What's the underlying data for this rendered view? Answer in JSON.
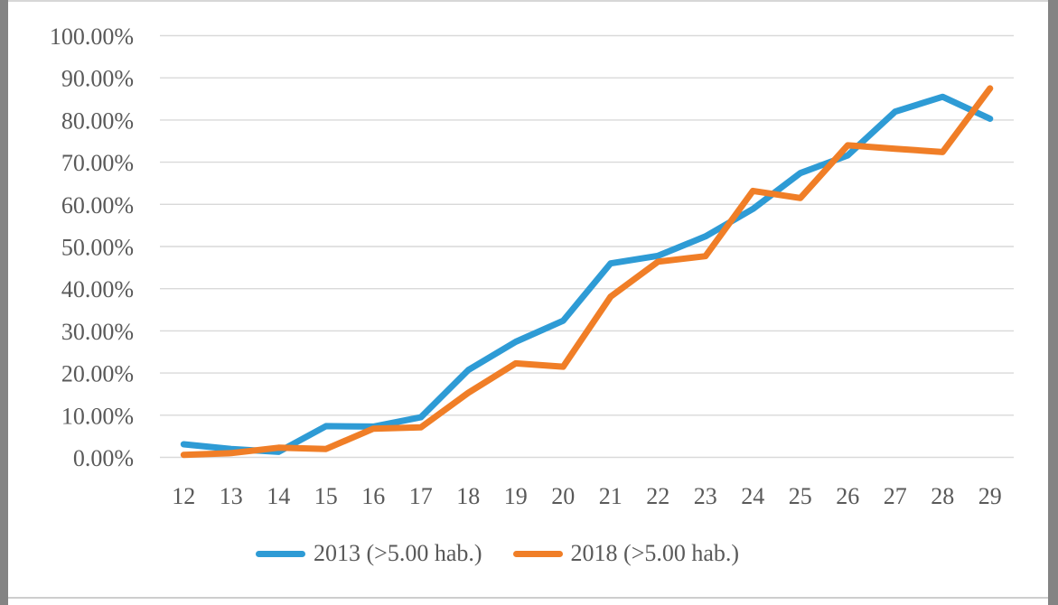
{
  "chart_data": {
    "type": "line",
    "title": "",
    "xlabel": "",
    "ylabel": "",
    "categories": [
      "12",
      "13",
      "14",
      "15",
      "16",
      "17",
      "18",
      "19",
      "20",
      "21",
      "22",
      "23",
      "24",
      "25",
      "26",
      "27",
      "28",
      "29"
    ],
    "series": [
      {
        "name": "2013 (>5.00 hab.)",
        "color": "#2E9BD5",
        "values": [
          3.1,
          2.0,
          1.3,
          7.4,
          7.3,
          9.5,
          20.7,
          27.4,
          32.4,
          46.0,
          47.8,
          52.4,
          58.9,
          67.4,
          71.6,
          82.0,
          85.5,
          80.3
        ]
      },
      {
        "name": "2018 (>5.00 hab.)",
        "color": "#F07E27",
        "values": [
          0.6,
          1.0,
          2.3,
          2.0,
          6.8,
          7.1,
          15.3,
          22.3,
          21.5,
          38.1,
          46.4,
          47.7,
          63.2,
          61.5,
          74.0,
          73.2,
          72.4,
          87.5
        ]
      }
    ],
    "y_ticks": [
      "0.00%",
      "10.00%",
      "20.00%",
      "30.00%",
      "40.00%",
      "50.00%",
      "60.00%",
      "70.00%",
      "80.00%",
      "90.00%",
      "100.00%"
    ],
    "ylim": [
      0,
      100
    ],
    "grid": true,
    "legend_position": "bottom"
  },
  "colors": {
    "axis_text": "#595959",
    "gridline": "#D9D9D9",
    "background": "#FFFFFF",
    "frame_side": "#848484",
    "frame_top": "#D7D7D7",
    "frame_bottom": "#CDCDCD"
  }
}
